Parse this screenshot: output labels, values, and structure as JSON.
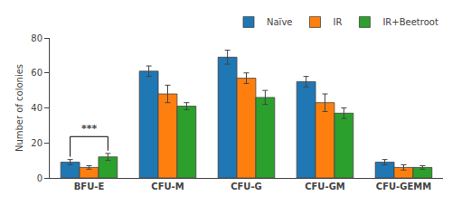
{
  "chart_data": {
    "type": "bar",
    "categories": [
      "BFU-E",
      "CFU-M",
      "CFU-G",
      "CFU-GM",
      "CFU-GEMM"
    ],
    "series": [
      {
        "name": "Naïve",
        "values": [
          9,
          61,
          69,
          55,
          9
        ],
        "errors": [
          1.5,
          3,
          4,
          3,
          1.5
        ]
      },
      {
        "name": "IR",
        "values": [
          6,
          48,
          57,
          43,
          6
        ],
        "errors": [
          1.0,
          5,
          3,
          5,
          1.5
        ]
      },
      {
        "name": "IR+Beetroot",
        "values": [
          12,
          41,
          46,
          37,
          6
        ],
        "errors": [
          2,
          2,
          4,
          3,
          1.0
        ]
      }
    ],
    "ylabel": "Number of colonies",
    "ylim": [
      0,
      80
    ],
    "yticks": [
      0,
      20,
      40,
      60,
      80
    ],
    "legend": "upper right",
    "grid": false,
    "annotations": [
      {
        "text": "***",
        "category": "BFU-E",
        "from": "Naïve",
        "to": "IR+Beetroot"
      }
    ]
  }
}
